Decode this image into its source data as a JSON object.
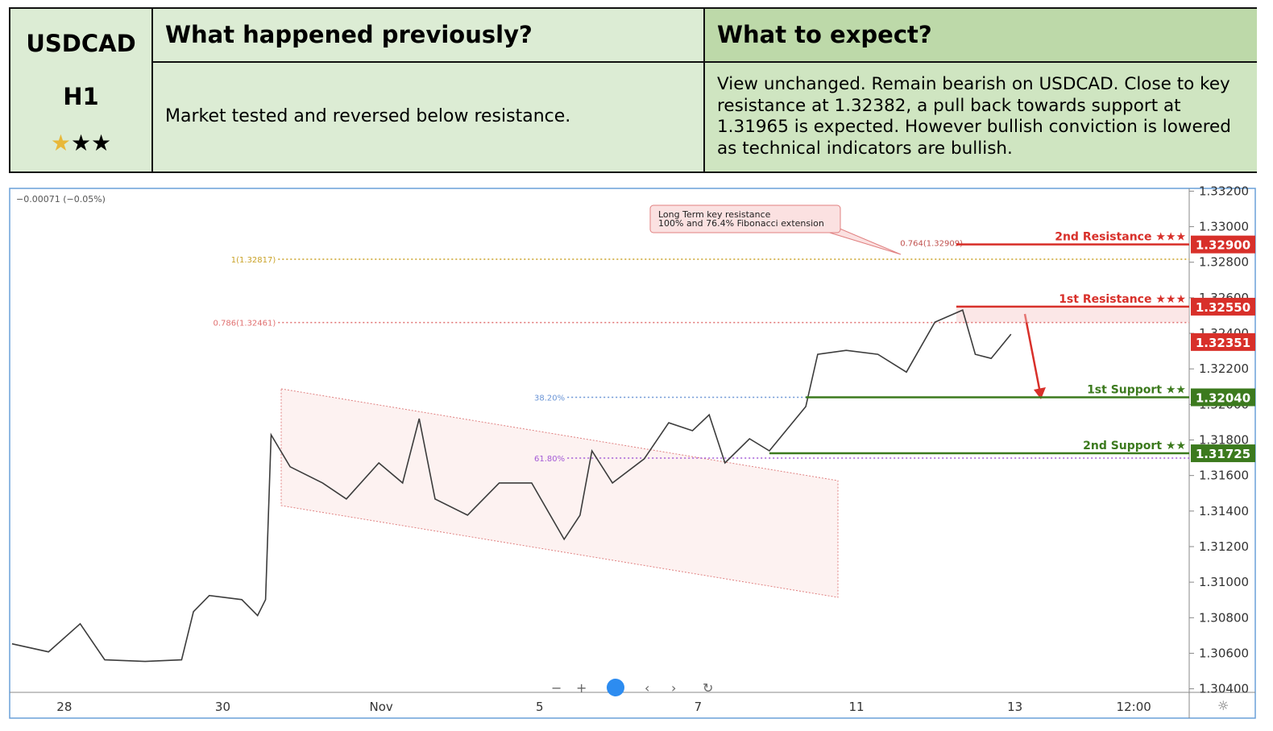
{
  "table": {
    "symbol": "USDCAD",
    "timeframe": "H1",
    "col1_header": "What happened previously?",
    "col2_header": "What to expect?",
    "col1_text": "Market tested and reversed below resistance.",
    "col2_text": "View unchanged. Remain bearish on USDCAD. Close to key resistance at 1.32382, a pull back towards support at 1.31965 is expected. However bullish conviction is lowered as technical indicators are bullish."
  },
  "chart": {
    "type": "line",
    "change": "−0.00071 (−0.05%)",
    "callout": [
      "Long Term key resistance",
      "100% and 76.4% Fibonacci extension"
    ],
    "ylim": [
      1.3038,
      1.3322
    ],
    "xlim": [
      -0.69,
      14.2
    ],
    "yticks": [
      {
        "value": 1.304,
        "label": "1.30400"
      },
      {
        "value": 1.306,
        "label": "1.30600"
      },
      {
        "value": 1.308,
        "label": "1.30800"
      },
      {
        "value": 1.31,
        "label": "1.31000"
      },
      {
        "value": 1.312,
        "label": "1.31200"
      },
      {
        "value": 1.314,
        "label": "1.31400"
      },
      {
        "value": 1.316,
        "label": "1.31600"
      },
      {
        "value": 1.318,
        "label": "1.31800"
      },
      {
        "value": 1.32,
        "label": "1.32000"
      },
      {
        "value": 1.322,
        "label": "1.32200"
      },
      {
        "value": 1.324,
        "label": "1.32400"
      },
      {
        "value": 1.326,
        "label": "1.32600"
      },
      {
        "value": 1.328,
        "label": "1.32800"
      },
      {
        "value": 1.33,
        "label": "1.33000"
      },
      {
        "value": 1.332,
        "label": "1.33200"
      }
    ],
    "xticks": [
      {
        "value": 0,
        "label": "28"
      },
      {
        "value": 2,
        "label": "30"
      },
      {
        "value": 4,
        "label": "Nov"
      },
      {
        "value": 6,
        "label": "5"
      },
      {
        "value": 8,
        "label": "7"
      },
      {
        "value": 10,
        "label": "11"
      },
      {
        "value": 12,
        "label": "13"
      },
      {
        "value": 13.5,
        "label": "12:00"
      }
    ],
    "series": [
      {
        "color": "#3c3c3c",
        "x": [
          -0.66,
          -0.2,
          0.2,
          0.51,
          1.02,
          1.48,
          1.63,
          1.83,
          2.24,
          2.44,
          2.54,
          2.61,
          2.85,
          3.26,
          3.56,
          3.97,
          4.27,
          4.48,
          4.68,
          5.09,
          5.49,
          5.9,
          6.31,
          6.51,
          6.66,
          6.92,
          7.32,
          7.63,
          7.93,
          8.14,
          8.34,
          8.65,
          8.9,
          9.36,
          9.51,
          9.87,
          10.27,
          10.63,
          10.99,
          11.34,
          11.5,
          11.7,
          11.95
        ],
        "values": [
          1.30653,
          1.30608,
          1.30766,
          1.30563,
          1.30554,
          1.30563,
          1.30834,
          1.30925,
          1.30902,
          1.30812,
          1.30902,
          1.31829,
          1.31649,
          1.31558,
          1.31468,
          1.31671,
          1.31558,
          1.3192,
          1.31468,
          1.31377,
          1.31558,
          1.31558,
          1.31241,
          1.31377,
          1.31739,
          1.31558,
          1.31694,
          1.31897,
          1.31852,
          1.31942,
          1.31671,
          1.31807,
          1.31739,
          1.31988,
          1.32282,
          1.32304,
          1.32282,
          1.32182,
          1.32463,
          1.32531,
          1.32282,
          1.32259,
          1.32395
        ]
      }
    ],
    "levels": [
      {
        "name": "2nd Resistance ★★★",
        "value": 1.329,
        "label": "1.32900",
        "color": "#d8302a",
        "start": 11.26
      },
      {
        "name": "1st Resistance ★★★",
        "value": 1.3255,
        "label": "1.32550",
        "color": "#d8302a",
        "start": 11.26
      },
      {
        "name": "1st Support ★★",
        "value": 1.3204,
        "label": "1.32040",
        "color": "#3c7a1e",
        "start": 9.36
      },
      {
        "name": "2nd Support ★★",
        "value": 1.31725,
        "label": "1.31725",
        "color": "#3c7a1e",
        "start": 8.9
      }
    ],
    "current": {
      "value": 1.32351,
      "label": "1.32351",
      "color": "#d8302a"
    },
    "fib_lines": [
      {
        "label": "1(1.32817)",
        "value": 1.32817,
        "color": "#c9a227",
        "start": 2.7
      },
      {
        "label": "0.786(1.32461)",
        "value": 1.32461,
        "color": "#e07070",
        "start": 2.7
      },
      {
        "label": "38.20%",
        "value": 1.3204,
        "color": "#6b95d6",
        "start": 6.35
      },
      {
        "label": "61.80%",
        "value": 1.31698,
        "color": "#a45bd6",
        "start": 6.35
      }
    ],
    "fib_note": {
      "label": "0.764(1.32909)",
      "value": 1.32909
    }
  }
}
